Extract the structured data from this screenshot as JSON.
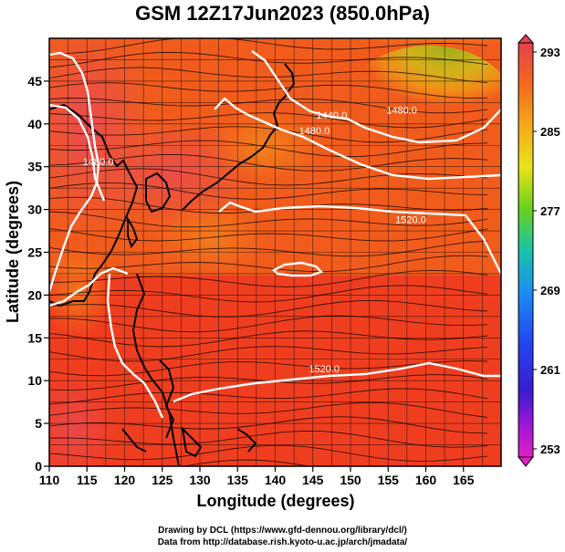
{
  "title": "GSM 12Z17Jun2023 (850.0hPa)",
  "chart_data": {
    "type": "heatmap",
    "xlabel": "Longitude (degrees)",
    "ylabel": "Latitude  (degrees)",
    "xlim": [
      110,
      170
    ],
    "ylim": [
      0,
      50
    ],
    "x_ticks": [
      "110",
      "115",
      "120",
      "125",
      "130",
      "135",
      "140",
      "145",
      "150",
      "155",
      "160",
      "165"
    ],
    "y_ticks": [
      "0",
      "5",
      "10",
      "15",
      "20",
      "25",
      "30",
      "35",
      "40",
      "45"
    ],
    "colorbar": {
      "range": [
        253,
        293
      ],
      "ticks": [
        "293",
        "285",
        "277",
        "269",
        "261",
        "253"
      ]
    },
    "contours": [
      {
        "label": "1480.0",
        "lon": 116.5,
        "lat": 35.2
      },
      {
        "label": "1480.0",
        "lon": 145.2,
        "lat": 38.8
      },
      {
        "label": "1480.0",
        "lon": 156.8,
        "lat": 41.2
      },
      {
        "label": "1440.0",
        "lon": 147.5,
        "lat": 40.6
      },
      {
        "label": "1520.0",
        "lon": 158.0,
        "lat": 28.4
      },
      {
        "label": "1520.0",
        "lon": 146.5,
        "lat": 11.0
      }
    ],
    "grid": true
  },
  "credits": {
    "line1": "Drawing by DCL (https://www.gfd-dennou.org/library/dcl/)",
    "line2": "Data from http://database.rish.kyoto-u.ac.jp/arch/jmadata/"
  },
  "colors": {
    "warm": "#ee3a1e",
    "hot": "#e84a52",
    "mid": "#f39a14",
    "cool": "#8fd81b",
    "contour": "#ffffff",
    "coast": "#000000"
  }
}
